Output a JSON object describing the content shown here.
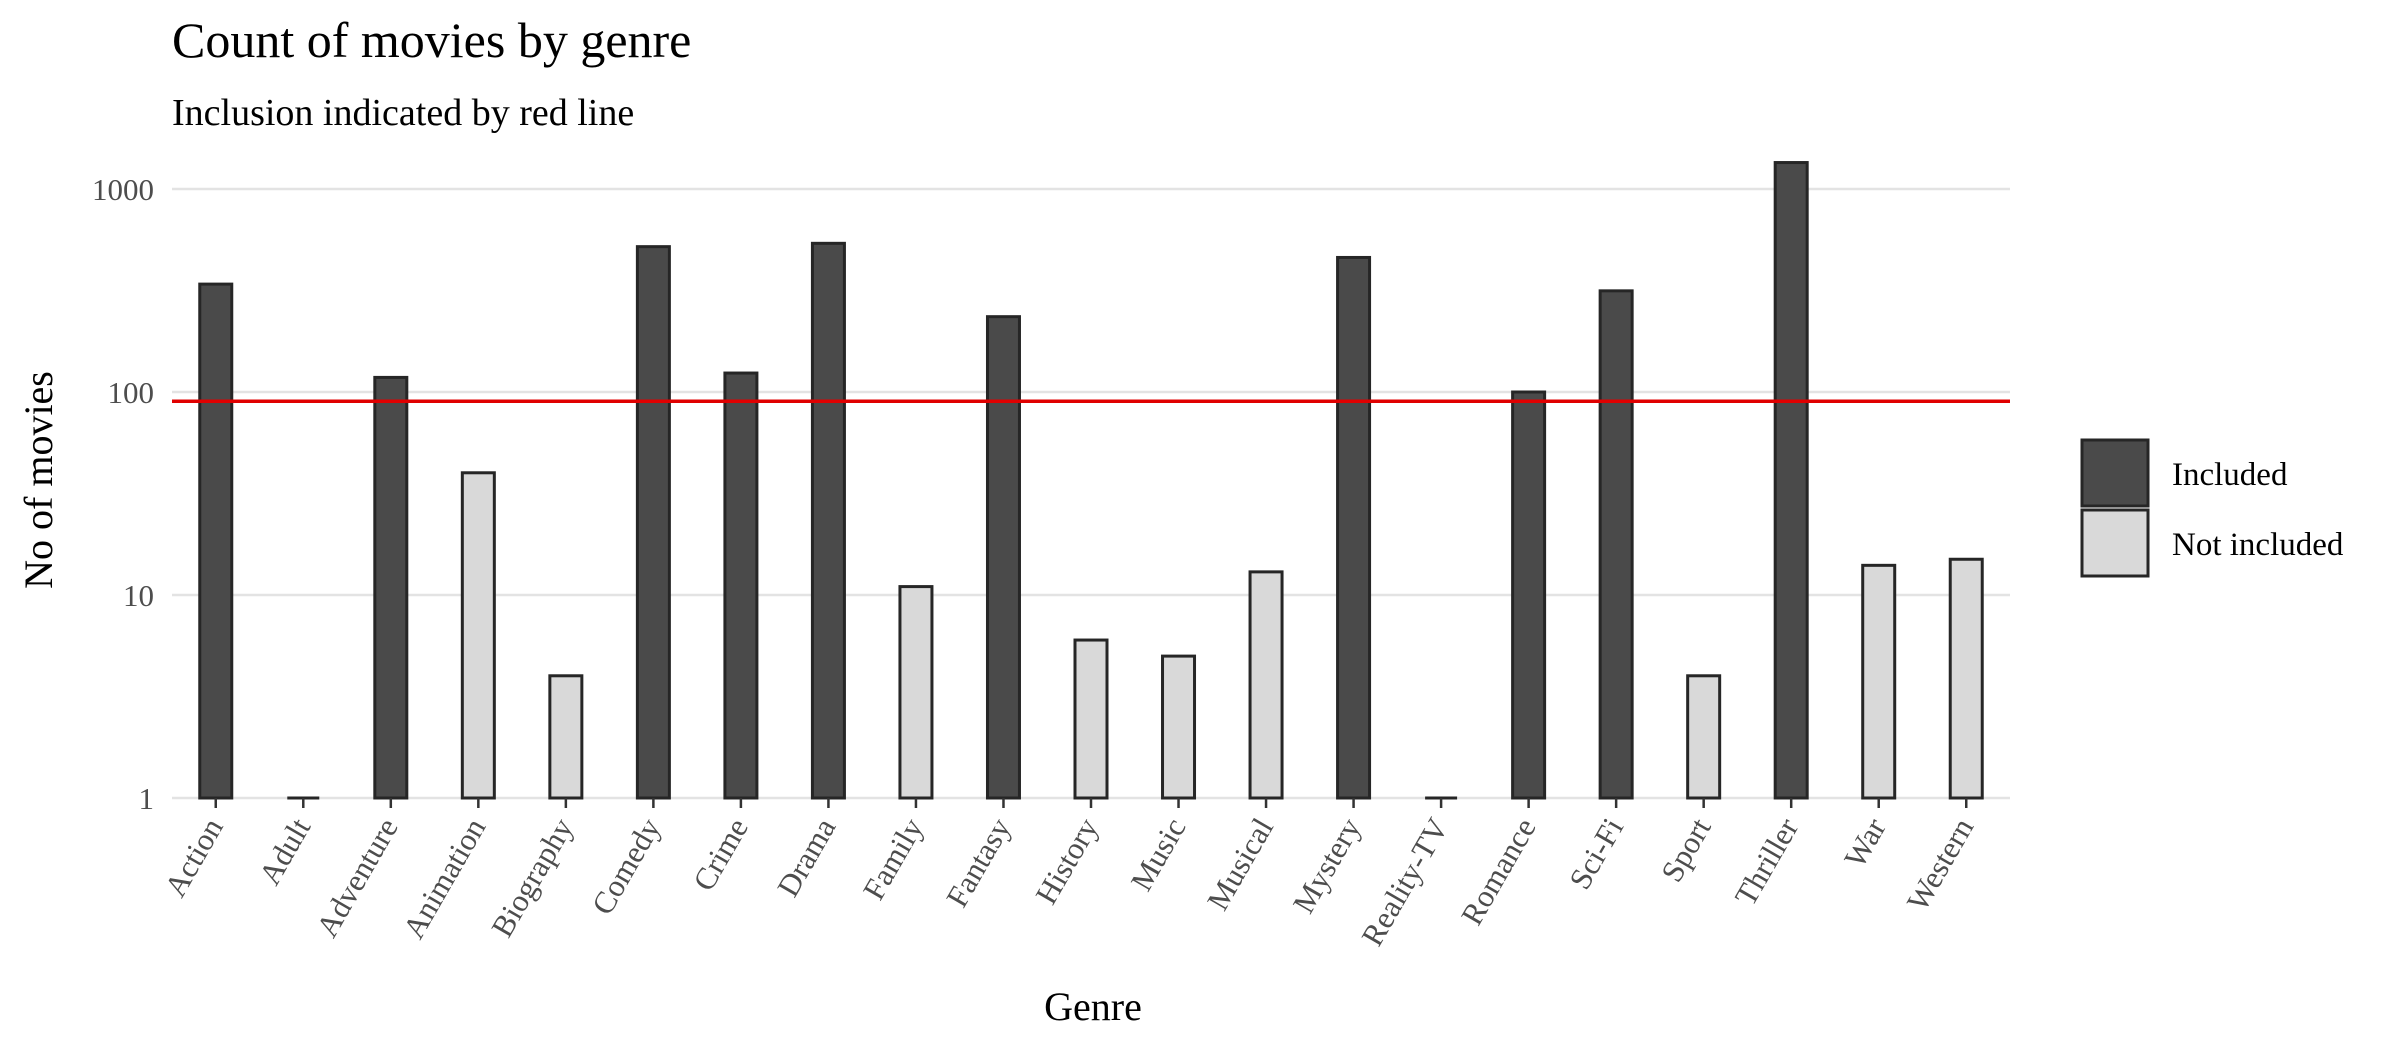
{
  "chart_data": {
    "type": "bar",
    "title": "Count of movies by genre",
    "subtitle": "Inclusion indicated by red line",
    "xlabel": "Genre",
    "ylabel": "No of movies",
    "y_scale": "log10",
    "ylim": [
      1,
      1400
    ],
    "y_ticks": [
      1,
      10,
      100,
      1000
    ],
    "y_tick_labels": [
      "1",
      "10",
      "100",
      "1000"
    ],
    "grid": true,
    "threshold": {
      "value": 90,
      "color": "#e00000"
    },
    "categories": [
      "Action",
      "Adult",
      "Adventure",
      "Animation",
      "Biography",
      "Comedy",
      "Crime",
      "Drama",
      "Family",
      "Fantasy",
      "History",
      "Music",
      "Musical",
      "Mystery",
      "Reality-TV",
      "Romance",
      "Sci-Fi",
      "Sport",
      "Thriller",
      "War",
      "Western"
    ],
    "values": [
      340,
      1,
      118,
      40,
      4,
      520,
      124,
      540,
      11,
      235,
      6,
      5,
      13,
      460,
      1,
      100,
      315,
      4,
      1350,
      14,
      15
    ],
    "included": [
      true,
      false,
      true,
      false,
      false,
      true,
      true,
      true,
      false,
      true,
      false,
      false,
      false,
      true,
      false,
      true,
      true,
      false,
      true,
      false,
      false
    ],
    "legend": {
      "position": "right",
      "entries": [
        {
          "label": "Included",
          "color": "#4a4a4a"
        },
        {
          "label": "Not included",
          "color": "#d9d9d9"
        }
      ]
    },
    "colors": {
      "included": "#4a4a4a",
      "not_included": "#d9d9d9",
      "bar_outline": "#262626"
    }
  }
}
